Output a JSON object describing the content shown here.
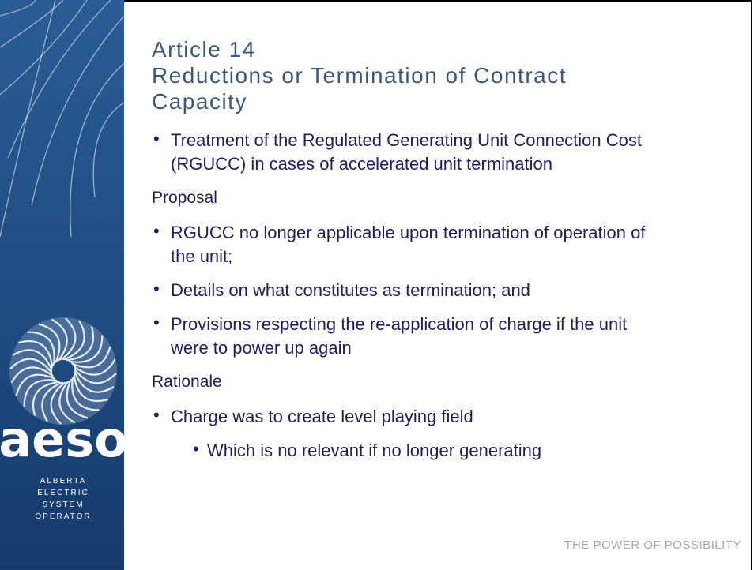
{
  "sidebar": {
    "logo": "aeso",
    "logo_lines": [
      "ALBERTA",
      "ELECTRIC",
      "SYSTEM",
      "OPERATOR"
    ]
  },
  "title_lines": [
    "Article 14",
    "Reductions or Termination of Contract Capacity"
  ],
  "bullets": [
    "Treatment of the Regulated Generating Unit Connection Cost (RGUCC) in cases of accelerated unit termination"
  ],
  "sections": [
    {
      "heading": "Proposal",
      "bullets": [
        {
          "text": "RGUCC no longer applicable upon termination of operation of the unit;"
        },
        {
          "text": "Details on what constitutes as termination; and"
        },
        {
          "text": "Provisions respecting the re-application of charge if the unit were to power up again"
        }
      ]
    },
    {
      "heading": "Rationale",
      "bullets": [
        {
          "text": "Charge was to create level playing field",
          "sub_bullets": [
            "Which is no relevant if no longer generating"
          ]
        }
      ]
    }
  ],
  "footer": "THE POWER OF POSSIBILITY"
}
